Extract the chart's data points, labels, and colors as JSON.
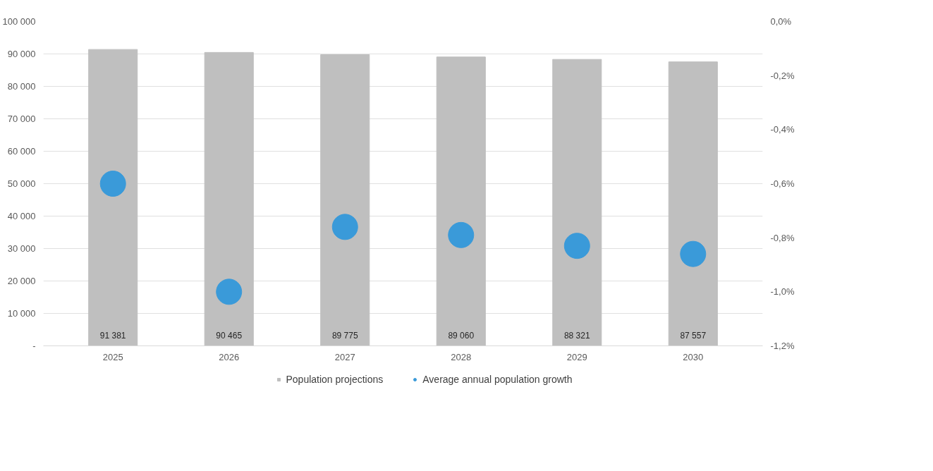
{
  "chart_data": {
    "type": "bar",
    "categories": [
      "2025",
      "2026",
      "2027",
      "2028",
      "2029",
      "2030"
    ],
    "series": [
      {
        "name": "Population projections",
        "color": "#bfbfbf",
        "values": [
          91381,
          90465,
          89775,
          89060,
          88321,
          87557
        ],
        "value_labels": [
          "91 381",
          "90 465",
          "89 775",
          "89 060",
          "88 321",
          "87 557"
        ]
      },
      {
        "name": "Average annual population growth",
        "type": "scatter",
        "axis": "y2",
        "color": "#3a9ad9",
        "values": [
          -0.6,
          -1.0,
          -0.76,
          -0.79,
          -0.83,
          -0.86
        ]
      }
    ],
    "ylim": [
      0,
      100000
    ],
    "yticks": [
      {
        "value": 0,
        "label": "-"
      },
      {
        "value": 10000,
        "label": "10 000"
      },
      {
        "value": 20000,
        "label": "20 000"
      },
      {
        "value": 30000,
        "label": "30 000"
      },
      {
        "value": 40000,
        "label": "40 000"
      },
      {
        "value": 50000,
        "label": "50 000"
      },
      {
        "value": 60000,
        "label": "60 000"
      },
      {
        "value": 70000,
        "label": "70 000"
      },
      {
        "value": 80000,
        "label": "80 000"
      },
      {
        "value": 90000,
        "label": "90 000"
      },
      {
        "value": 100000,
        "label": "100 000"
      }
    ],
    "y2lim": [
      -1.2,
      0
    ],
    "y2ticks": [
      {
        "value": -1.2,
        "label": "-1,2%"
      },
      {
        "value": -1.0,
        "label": "-1,0%"
      },
      {
        "value": -0.8,
        "label": "-0,8%"
      },
      {
        "value": -0.6,
        "label": "-0,6%"
      },
      {
        "value": -0.4,
        "label": "-0,4%"
      },
      {
        "value": -0.2,
        "label": "-0,2%"
      },
      {
        "value": 0,
        "label": "0,0%"
      }
    ],
    "grid": "y",
    "legend": "bottom",
    "marker": "circle"
  }
}
